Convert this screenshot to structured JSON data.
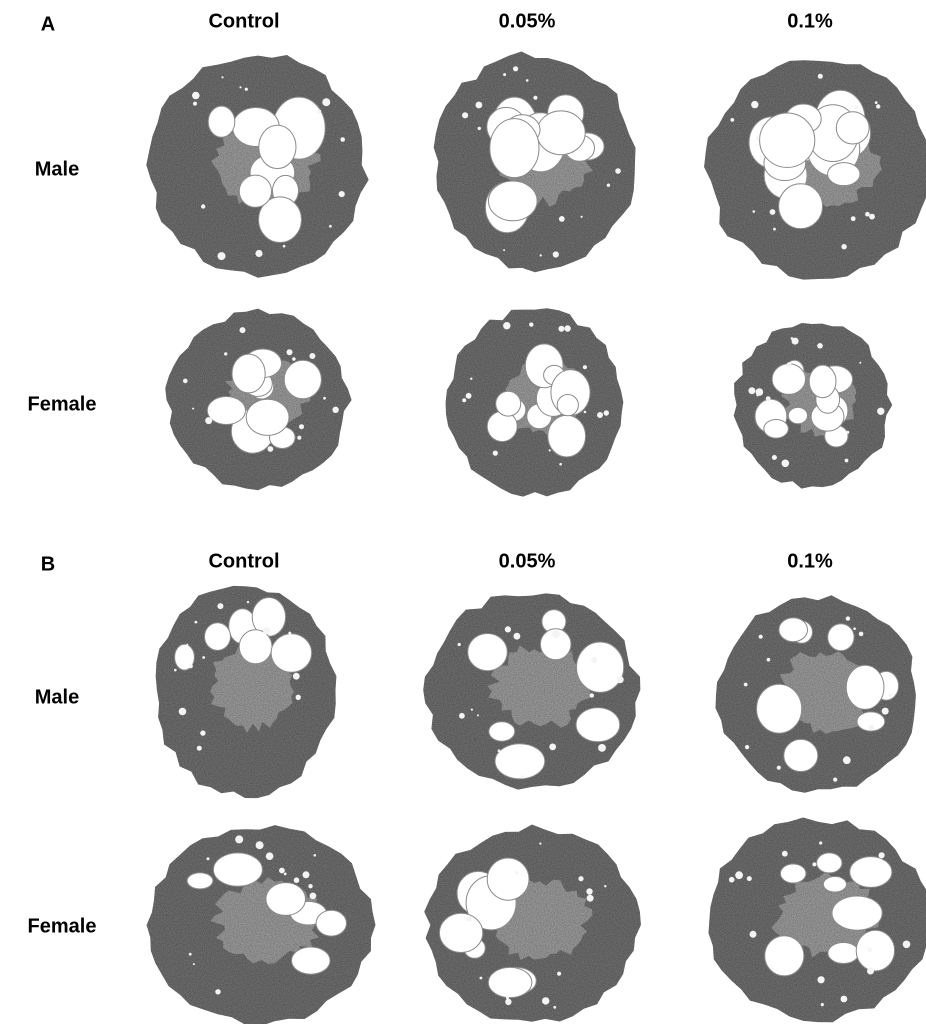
{
  "panels": [
    {
      "label": "A",
      "columns": [
        "Control",
        "0.05%",
        "0.1%"
      ],
      "rows": [
        "Male",
        "Female"
      ]
    },
    {
      "label": "B",
      "columns": [
        "Control",
        "0.05%",
        "0.1%"
      ],
      "rows": [
        "Male",
        "Female"
      ]
    }
  ]
}
